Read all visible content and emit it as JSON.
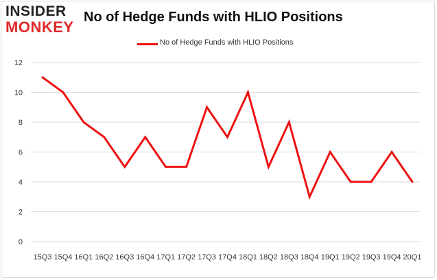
{
  "logo": {
    "line1": "INSIDER",
    "line2": "MONKEY"
  },
  "chart_data": {
    "type": "line",
    "title": "No of Hedge Funds with HLIO Positions",
    "xlabel": "",
    "ylabel": "",
    "categories": [
      "2015Q3",
      "2015Q4",
      "2016Q1",
      "2016Q2",
      "2016Q3",
      "2016Q4",
      "2017Q1",
      "2017Q2",
      "2017Q3",
      "2017Q4",
      "2018Q1",
      "2018Q2",
      "2018Q3",
      "2018Q4",
      "2019Q1",
      "2019Q2",
      "2019Q3",
      "2019Q4",
      "2020Q1"
    ],
    "tick_labels": [
      "15Q3",
      "15Q4",
      "16Q1",
      "16Q2",
      "16Q3",
      "16Q4",
      "17Q1",
      "17Q2",
      "17Q3",
      "17Q4",
      "18Q1",
      "18Q2",
      "18Q3",
      "18Q4",
      "19Q1",
      "19Q2",
      "19Q3",
      "19Q4",
      "20Q1"
    ],
    "series": [
      {
        "name": "No of Hedge Funds with HLIO Positions",
        "values": [
          11,
          10,
          8,
          7,
          5,
          7,
          5,
          5,
          9,
          7,
          10,
          5,
          8,
          3,
          6,
          4,
          4,
          6,
          4
        ],
        "color": "#ee1111"
      }
    ],
    "ylim": [
      0,
      12
    ],
    "yticks": [
      0,
      2,
      4,
      6,
      8,
      10,
      12
    ],
    "grid": true,
    "legend_position": "top-center"
  }
}
